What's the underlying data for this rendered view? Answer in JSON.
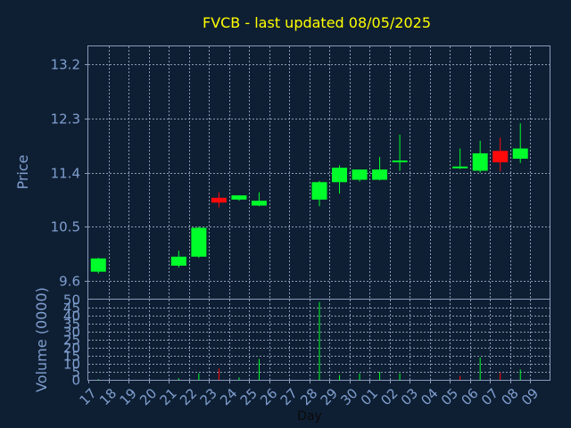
{
  "chart_data": {
    "type": "candlestick",
    "title": "FVCB - last updated 08/05/2025",
    "xlabel": "Day",
    "ylabel": "Price",
    "volume_label": "Volume (0000)",
    "x_ticks": [
      "17",
      "18",
      "19",
      "20",
      "21",
      "22",
      "23",
      "24",
      "25",
      "26",
      "27",
      "28",
      "29",
      "30",
      "01",
      "02",
      "03",
      "04",
      "05",
      "06",
      "07",
      "08",
      "09"
    ],
    "price_ticks": [
      "9.6",
      "10.5",
      "11.4",
      "12.3",
      "13.2"
    ],
    "price_range": [
      9.3,
      13.5
    ],
    "volume_ticks": [
      "0",
      "5",
      "10",
      "15",
      "20",
      "25",
      "30",
      "35",
      "40",
      "45",
      "50"
    ],
    "volume_range": [
      0,
      50
    ],
    "grid": true,
    "colors": {
      "background": "#0f1f33",
      "plot_border": "#8899bb",
      "grid": "#8a9ab5",
      "up": "#00ff2a",
      "down": "#ff0a0a",
      "title": "#ffff00",
      "axis_text": "#7f9fd0",
      "xlabel": "#0a0a0a"
    },
    "candles": [
      {
        "day": "17",
        "open": 9.75,
        "high": 9.98,
        "low": 9.72,
        "close": 9.97
      },
      {
        "day": "21",
        "open": 9.85,
        "high": 10.1,
        "low": 9.82,
        "close": 10.0
      },
      {
        "day": "22",
        "open": 10.0,
        "high": 10.5,
        "low": 9.98,
        "close": 10.48
      },
      {
        "day": "23",
        "open": 10.98,
        "high": 11.07,
        "low": 10.82,
        "close": 10.9
      },
      {
        "day": "24",
        "open": 10.95,
        "high": 11.02,
        "low": 10.93,
        "close": 11.02
      },
      {
        "day": "25",
        "open": 10.85,
        "high": 11.07,
        "low": 10.84,
        "close": 10.93
      },
      {
        "day": "28",
        "open": 10.95,
        "high": 11.26,
        "low": 10.84,
        "close": 11.24
      },
      {
        "day": "29",
        "open": 11.24,
        "high": 11.52,
        "low": 11.05,
        "close": 11.48
      },
      {
        "day": "30",
        "open": 11.28,
        "high": 11.44,
        "low": 11.25,
        "close": 11.45
      },
      {
        "day": "01",
        "open": 11.28,
        "high": 11.66,
        "low": 11.27,
        "close": 11.45
      },
      {
        "day": "02",
        "open": 11.58,
        "high": 12.03,
        "low": 11.43,
        "close": 11.6
      },
      {
        "day": "05",
        "open": 11.48,
        "high": 11.8,
        "low": 11.46,
        "close": 11.5
      },
      {
        "day": "06",
        "open": 11.43,
        "high": 11.93,
        "low": 11.4,
        "close": 11.72
      },
      {
        "day": "07",
        "open": 11.76,
        "high": 11.98,
        "low": 11.42,
        "close": 11.57
      },
      {
        "day": "08",
        "open": 11.63,
        "high": 12.22,
        "low": 11.56,
        "close": 11.8
      }
    ],
    "volume": [
      {
        "day": "17",
        "value": 0.5,
        "up": true
      },
      {
        "day": "21",
        "value": 1.0,
        "up": true
      },
      {
        "day": "22",
        "value": 4.0,
        "up": true
      },
      {
        "day": "23",
        "value": 7.0,
        "up": false
      },
      {
        "day": "24",
        "value": 1.5,
        "up": true
      },
      {
        "day": "25",
        "value": 13.0,
        "up": true
      },
      {
        "day": "28",
        "value": 48.5,
        "up": true
      },
      {
        "day": "29",
        "value": 3.0,
        "up": true
      },
      {
        "day": "30",
        "value": 4.0,
        "up": true
      },
      {
        "day": "01",
        "value": 5.0,
        "up": true
      },
      {
        "day": "02",
        "value": 4.0,
        "up": true
      },
      {
        "day": "05",
        "value": 2.5,
        "up": false
      },
      {
        "day": "06",
        "value": 14.0,
        "up": true
      },
      {
        "day": "07",
        "value": 4.5,
        "up": false
      },
      {
        "day": "08",
        "value": 6.5,
        "up": true
      }
    ]
  }
}
